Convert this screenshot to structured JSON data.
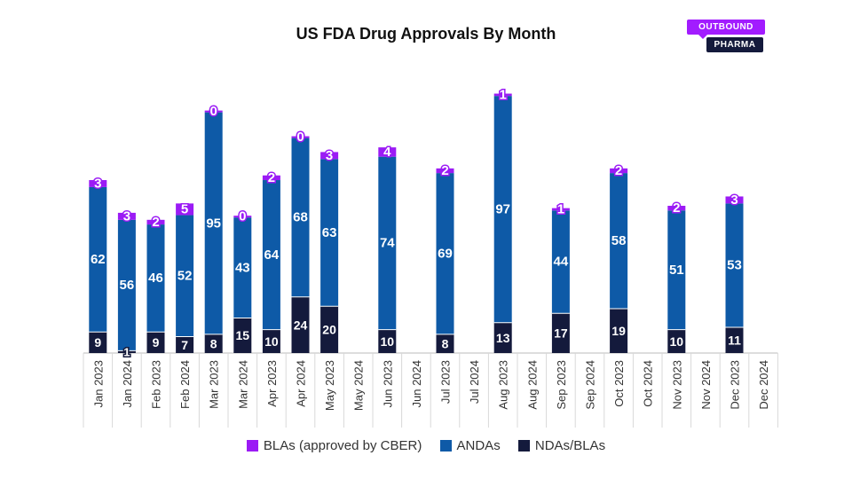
{
  "title": "US FDA Drug Approvals By Month",
  "logo": {
    "line1": "OUTBOUND",
    "line2": "PHARMA"
  },
  "colors": {
    "blas": "#9b1bf5",
    "andas": "#0e5aa7",
    "ndas": "#141a3c",
    "label": "#ffffff"
  },
  "chart_data": {
    "type": "bar",
    "stacked": true,
    "title": "US FDA Drug Approvals By Month",
    "categories": [
      "Jan 2023",
      "Jan 2024",
      "Feb 2023",
      "Feb 2024",
      "Mar 2023",
      "Mar 2024",
      "Apr 2023",
      "Apr 2024",
      "May 2023",
      "May 2024",
      "Jun 2023",
      "Jun 2024",
      "Jul 2023",
      "Jul 2024",
      "Aug 2023",
      "Aug 2024",
      "Sep 2023",
      "Sep 2024",
      "Oct 2023",
      "Oct 2024",
      "Nov 2023",
      "Nov 2024",
      "Dec 2023",
      "Dec 2024"
    ],
    "series": [
      {
        "name": "NDAs/BLAs",
        "values": [
          9,
          1,
          9,
          7,
          8,
          15,
          10,
          24,
          20,
          null,
          10,
          null,
          8,
          null,
          13,
          null,
          17,
          null,
          19,
          null,
          10,
          null,
          11,
          null
        ]
      },
      {
        "name": "ANDAs",
        "values": [
          62,
          56,
          46,
          52,
          95,
          43,
          64,
          68,
          63,
          null,
          74,
          null,
          69,
          null,
          97,
          null,
          44,
          null,
          58,
          null,
          51,
          null,
          53,
          null
        ]
      },
      {
        "name": "BLAs (approved by CBER)",
        "values": [
          3,
          3,
          2,
          5,
          0,
          0,
          2,
          0,
          3,
          null,
          4,
          null,
          2,
          null,
          1,
          null,
          1,
          null,
          2,
          null,
          2,
          null,
          3,
          null
        ]
      }
    ],
    "ylim": [
      0,
      115
    ],
    "legend": [
      "BLAs (approved by CBER)",
      "ANDAs",
      "NDAs/BLAs"
    ],
    "legend_position": "bottom"
  }
}
